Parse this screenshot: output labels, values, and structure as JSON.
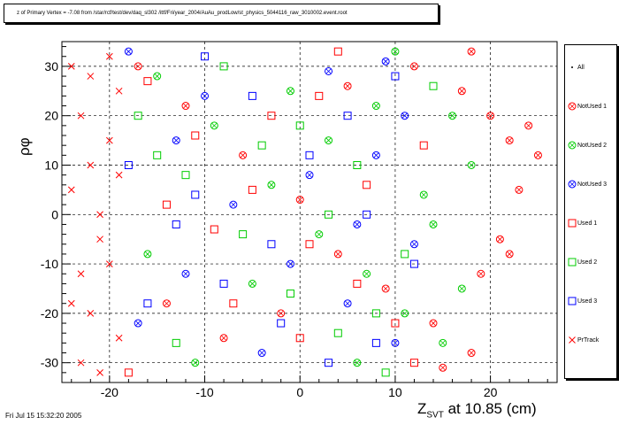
{
  "header": {
    "info": "z of Primary Vertex =    -7.08 from /star/rcf/test/dev/daq_sl302 /ittf/Fri/year_2004/AuAu_prodLow/st_physics_5044116_raw_3010002.event.root"
  },
  "footer": {
    "date": "Fri Jul 15 15:32:20 2005"
  },
  "axes": {
    "x_title_main": "Z",
    "x_title_sub": "SVT",
    "x_title_rest": " at    10.85 (cm)",
    "y_title": "ρφ"
  },
  "legend": {
    "items": [
      {
        "label": "All",
        "marker": "dot",
        "color": "#000000"
      },
      {
        "label": "NotUsed 1",
        "marker": "circle-x",
        "color": "#ff0000"
      },
      {
        "label": "NotUsed 2",
        "marker": "circle-x",
        "color": "#00cc00"
      },
      {
        "label": "NotUsed 3",
        "marker": "circle-x",
        "color": "#0000ff"
      },
      {
        "label": "Used 1",
        "marker": "square",
        "color": "#ff0000"
      },
      {
        "label": "Used 2",
        "marker": "square",
        "color": "#00cc00"
      },
      {
        "label": "Used 3",
        "marker": "square",
        "color": "#0000ff"
      },
      {
        "label": "PrTrack",
        "marker": "cross",
        "color": "#ff0000"
      }
    ]
  },
  "chart_data": {
    "type": "scatter",
    "title": "",
    "xlabel": "Z_SVT at 10.85 (cm)",
    "ylabel": "ρφ",
    "xlim": [
      -25,
      27
    ],
    "ylim": [
      -34,
      35
    ],
    "xticks": [
      -20,
      -10,
      0,
      10,
      20
    ],
    "yticks": [
      -30,
      -20,
      -10,
      0,
      10,
      20,
      30
    ],
    "grid": true,
    "legend_position": "right",
    "series": [
      {
        "name": "NotUsed 1",
        "color": "#ff0000",
        "marker": "circle-x",
        "points": [
          [
            -17,
            30
          ],
          [
            -12,
            22
          ],
          [
            -6,
            12
          ],
          [
            0,
            3
          ],
          [
            4,
            -8
          ],
          [
            9,
            -15
          ],
          [
            14,
            -22
          ],
          [
            18,
            -28
          ],
          [
            20,
            20
          ],
          [
            22,
            15
          ],
          [
            24,
            18
          ],
          [
            21,
            -5
          ],
          [
            19,
            -12
          ],
          [
            23,
            5
          ],
          [
            17,
            25
          ],
          [
            12,
            30
          ],
          [
            5,
            26
          ],
          [
            -2,
            -20
          ],
          [
            -8,
            -25
          ],
          [
            -14,
            -18
          ],
          [
            15,
            -31
          ],
          [
            18,
            33
          ],
          [
            22,
            -8
          ],
          [
            25,
            12
          ]
        ]
      },
      {
        "name": "NotUsed 2",
        "color": "#00cc00",
        "marker": "circle-x",
        "points": [
          [
            -15,
            28
          ],
          [
            -9,
            18
          ],
          [
            -3,
            6
          ],
          [
            2,
            -4
          ],
          [
            7,
            -12
          ],
          [
            11,
            -20
          ],
          [
            15,
            -26
          ],
          [
            16,
            20
          ],
          [
            18,
            10
          ],
          [
            13,
            4
          ],
          [
            10,
            33
          ],
          [
            -11,
            -30
          ],
          [
            -5,
            -14
          ],
          [
            3,
            15
          ],
          [
            8,
            22
          ],
          [
            14,
            -2
          ],
          [
            17,
            -15
          ],
          [
            6,
            -30
          ],
          [
            -16,
            -8
          ],
          [
            -1,
            25
          ]
        ]
      },
      {
        "name": "NotUsed 3",
        "color": "#0000ff",
        "marker": "circle-x",
        "points": [
          [
            -18,
            33
          ],
          [
            -13,
            15
          ],
          [
            -7,
            2
          ],
          [
            -1,
            -10
          ],
          [
            5,
            -18
          ],
          [
            10,
            -26
          ],
          [
            -10,
            24
          ],
          [
            3,
            29
          ],
          [
            8,
            12
          ],
          [
            12,
            -6
          ],
          [
            -4,
            -28
          ],
          [
            1,
            8
          ],
          [
            6,
            -2
          ],
          [
            -12,
            -12
          ],
          [
            9,
            31
          ],
          [
            -17,
            -22
          ],
          [
            11,
            20
          ]
        ]
      },
      {
        "name": "Used 1",
        "color": "#ff0000",
        "marker": "square",
        "points": [
          [
            -16,
            27
          ],
          [
            -11,
            16
          ],
          [
            -5,
            5
          ],
          [
            1,
            -6
          ],
          [
            6,
            -14
          ],
          [
            10,
            -22
          ],
          [
            -9,
            -3
          ],
          [
            -3,
            20
          ],
          [
            4,
            33
          ],
          [
            7,
            6
          ],
          [
            12,
            -30
          ],
          [
            -14,
            2
          ],
          [
            -7,
            -18
          ],
          [
            2,
            24
          ],
          [
            13,
            14
          ],
          [
            -18,
            -32
          ],
          [
            0,
            -25
          ]
        ]
      },
      {
        "name": "Used 2",
        "color": "#00cc00",
        "marker": "square",
        "points": [
          [
            -17,
            20
          ],
          [
            -12,
            8
          ],
          [
            -6,
            -4
          ],
          [
            -1,
            -16
          ],
          [
            4,
            -24
          ],
          [
            9,
            -32
          ],
          [
            -8,
            30
          ],
          [
            0,
            18
          ],
          [
            6,
            10
          ],
          [
            11,
            -8
          ],
          [
            -13,
            -26
          ],
          [
            -4,
            14
          ],
          [
            3,
            0
          ],
          [
            8,
            -20
          ],
          [
            14,
            26
          ],
          [
            -15,
            12
          ]
        ]
      },
      {
        "name": "Used 3",
        "color": "#0000ff",
        "marker": "square",
        "points": [
          [
            -18,
            10
          ],
          [
            -13,
            -2
          ],
          [
            -8,
            -14
          ],
          [
            -2,
            -22
          ],
          [
            3,
            -30
          ],
          [
            -10,
            32
          ],
          [
            -5,
            24
          ],
          [
            1,
            12
          ],
          [
            7,
            0
          ],
          [
            12,
            -10
          ],
          [
            -16,
            -18
          ],
          [
            5,
            20
          ],
          [
            10,
            28
          ],
          [
            -3,
            -6
          ],
          [
            8,
            -26
          ],
          [
            -11,
            4
          ]
        ]
      },
      {
        "name": "PrTrack",
        "color": "#ff0000",
        "marker": "cross",
        "points": [
          [
            -24,
            30
          ],
          [
            -23,
            20
          ],
          [
            -22,
            10
          ],
          [
            -21,
            0
          ],
          [
            -20,
            -10
          ],
          [
            -22,
            -20
          ],
          [
            -23,
            -30
          ],
          [
            -19,
            25
          ],
          [
            -20,
            15
          ],
          [
            -21,
            -5
          ],
          [
            -19,
            -25
          ],
          [
            -24,
            5
          ],
          [
            -23,
            -12
          ],
          [
            -20,
            32
          ],
          [
            -21,
            -32
          ],
          [
            -22,
            28
          ],
          [
            -24,
            -18
          ],
          [
            -19,
            8
          ]
        ]
      }
    ]
  }
}
